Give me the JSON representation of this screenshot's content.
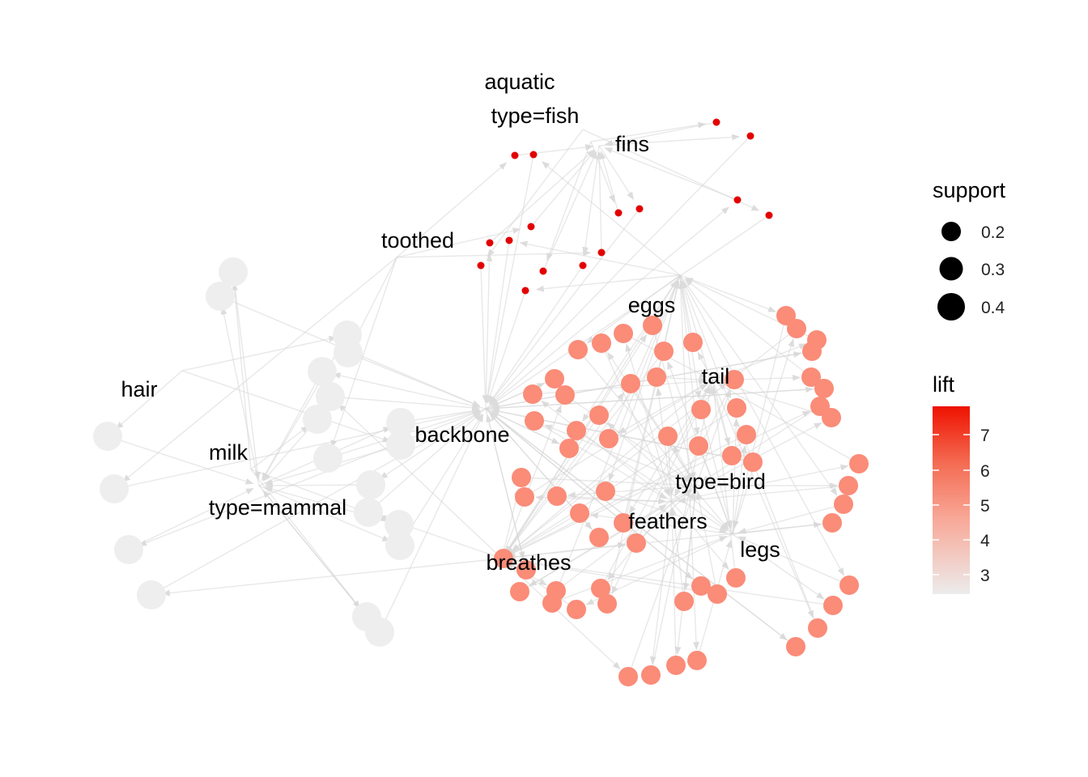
{
  "graph": {
    "labels": [
      "aquatic",
      "type=fish",
      "fins",
      "toothed",
      "eggs",
      "tail",
      "hair",
      "milk",
      "backbone",
      "type=bird",
      "type=mammal",
      "feathers",
      "legs",
      "breathes"
    ],
    "edge_color": "#d6d6d6"
  },
  "legend": {
    "support": {
      "title": "support",
      "items": [
        {
          "label": "0.2",
          "value": 0.2
        },
        {
          "label": "0.3",
          "value": 0.3
        },
        {
          "label": "0.4",
          "value": 0.4
        }
      ]
    },
    "lift": {
      "title": "lift",
      "ticks": [
        {
          "label": "3",
          "value": 3
        },
        {
          "label": "4",
          "value": 4
        },
        {
          "label": "5",
          "value": 5
        },
        {
          "label": "6",
          "value": 6
        },
        {
          "label": "7",
          "value": 7
        }
      ],
      "range": [
        2.5,
        7.8
      ],
      "color_low": "#ececec",
      "color_high": "#ee1200"
    }
  },
  "colors": {
    "rule_low": "#eeeeee",
    "rule_mid": "#fa8c78",
    "rule_high": "#e30000"
  }
}
